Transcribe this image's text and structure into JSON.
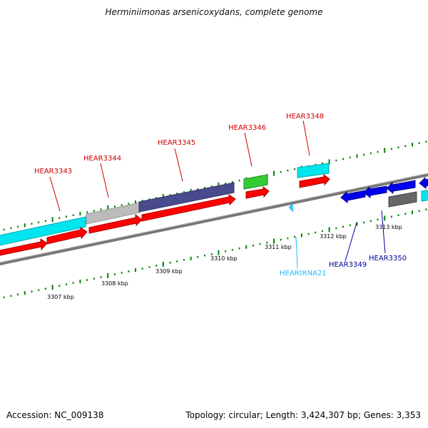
{
  "title": "Herminiimonas arsenicoxydans, complete genome",
  "footer": {
    "accession": "Accession: NC_009138",
    "summary": "Topology: circular; Length: 3,424,307 bp; Genes: 3,353"
  },
  "colors": {
    "gene_forward": "#ff0000",
    "gene_reverse": "#0000ee",
    "rna": "#00e5ee",
    "trna": "#33ccff",
    "backbone": "#888888",
    "tick": "#008000",
    "label_forward": "#cc0000",
    "label_reverse": "#000099",
    "label_trna": "#22bbff",
    "cds_cyan": "#00e5ee",
    "cds_gray": "#bbbbbb",
    "cds_purple": "#4a4a8f",
    "cds_green": "#33cc33",
    "cds_darkgray": "#666666"
  },
  "scale_labels": [
    "3307 kbp",
    "3308 kbp",
    "3309 kbp",
    "3310 kbp",
    "3311 kbp",
    "3312 kbp",
    "3313 kbp"
  ],
  "gene_labels": [
    {
      "name": "HEAR3343",
      "strand": "forward"
    },
    {
      "name": "HEAR3344",
      "strand": "forward"
    },
    {
      "name": "HEAR3345",
      "strand": "forward"
    },
    {
      "name": "HEAR3346",
      "strand": "forward"
    },
    {
      "name": "HEAR3348",
      "strand": "forward"
    },
    {
      "name": "HEARtRNA21",
      "strand": "trna"
    },
    {
      "name": "HEAR3349",
      "strand": "reverse"
    },
    {
      "name": "HEAR3350",
      "strand": "reverse"
    }
  ]
}
